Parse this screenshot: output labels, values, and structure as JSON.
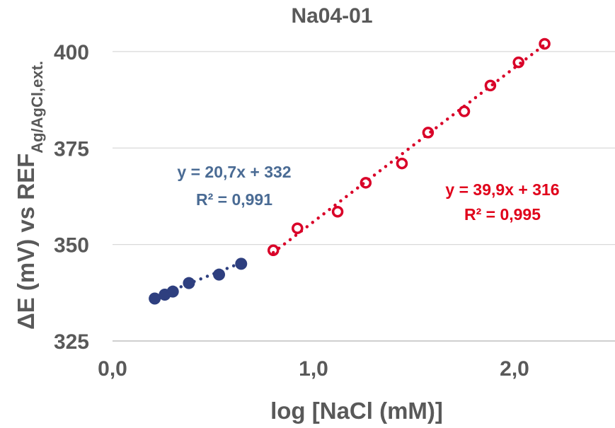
{
  "chart_data": {
    "type": "scatter",
    "title": "Na04-01",
    "xlabel": "log [NaCl (mM)]",
    "ylabel_main": "ΔE (mV) vs REF",
    "ylabel_sub": "Ag/AgCl,ext.",
    "xlim": [
      0,
      2.5
    ],
    "ylim": [
      325,
      405
    ],
    "x_ticks": [
      0,
      1,
      2
    ],
    "x_tick_labels": [
      "0,0",
      "1,0",
      "2,0"
    ],
    "y_ticks": [
      325,
      350,
      375,
      400
    ],
    "y_tick_labels": [
      "325",
      "350",
      "375",
      "400"
    ],
    "grid": "horizontal",
    "series": [
      {
        "color": "#2e3f7f",
        "trend_color": "#2e3f7f",
        "marker": "filled-circle",
        "x": [
          0.21,
          0.26,
          0.3,
          0.38,
          0.53,
          0.64
        ],
        "y": [
          336,
          337,
          337.8,
          340,
          342.2,
          345
        ],
        "trendline": {
          "slope": 20.7,
          "intercept": 332,
          "x_range": [
            0.21,
            0.64
          ]
        },
        "equation_text": "y = 20,7x + 332",
        "r2_text": "R² = 0,991",
        "label_color": "#4a6b94"
      },
      {
        "color": "#d90028",
        "trend_color": "#d90028",
        "marker": "open-circle",
        "x": [
          0.8,
          0.92,
          1.12,
          1.26,
          1.44,
          1.57,
          1.75,
          1.88,
          2.02,
          2.15
        ],
        "y": [
          348.5,
          354.2,
          358.5,
          366,
          371,
          379,
          384.5,
          391.2,
          397.2,
          402
        ],
        "trendline": {
          "slope": 39.9,
          "intercept": 316,
          "x_range": [
            0.8,
            2.15
          ]
        },
        "equation_text": "y = 39,9x + 316",
        "r2_text": "R² = 0,995",
        "label_color": "#e0001a"
      }
    ]
  }
}
